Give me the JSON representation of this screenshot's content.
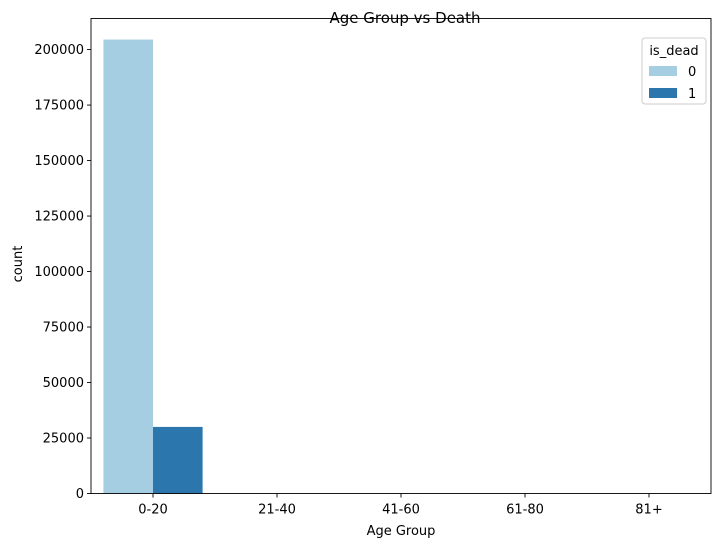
{
  "chart_data": {
    "type": "bar",
    "title": "Age Group vs Death",
    "xlabel": "Age Group",
    "ylabel": "count",
    "categories": [
      "0-20",
      "21-40",
      "41-60",
      "61-80",
      "81+"
    ],
    "series": [
      {
        "name": "0",
        "color": "#a6cee3",
        "values": [
          204500,
          0,
          0,
          0,
          0
        ]
      },
      {
        "name": "1",
        "color": "#2b76ad",
        "values": [
          30000,
          0,
          0,
          0,
          0
        ]
      }
    ],
    "ylim": [
      0,
      214000
    ],
    "yticks": [
      0,
      25000,
      50000,
      75000,
      100000,
      125000,
      150000,
      175000,
      200000
    ],
    "ytick_labels": [
      "0",
      "25000",
      "50000",
      "75000",
      "100000",
      "125000",
      "150000",
      "175000",
      "200000"
    ],
    "legend": {
      "title": "is_dead",
      "placement": "top-right"
    },
    "grid": false
  }
}
